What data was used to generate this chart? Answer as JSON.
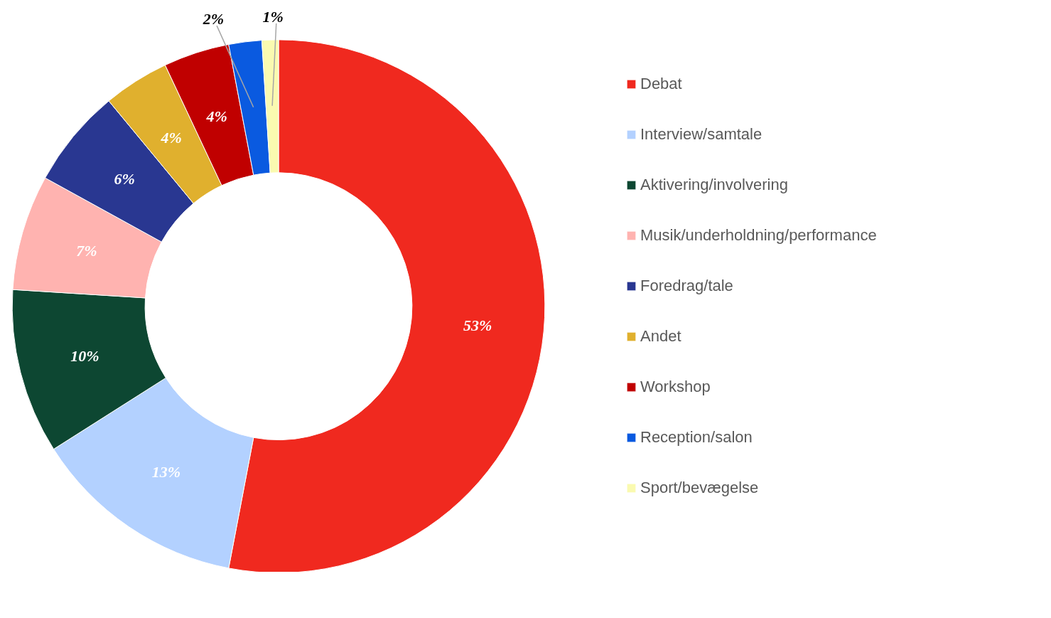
{
  "chart_data": {
    "type": "donut",
    "categories": [
      "Debat",
      "Interview/samtale",
      "Aktivering/involvering",
      "Musik/underholdning/performance",
      "Foredrag/tale",
      "Andet",
      "Workshop",
      "Reception/salon",
      "Sport/bevægelse"
    ],
    "values": [
      53,
      13,
      10,
      7,
      6,
      4,
      4,
      2,
      1
    ],
    "colors": [
      "#f0291f",
      "#b3d1ff",
      "#0d4732",
      "#ffb3b0",
      "#293791",
      "#e0b02e",
      "#c00000",
      "#0a5ae0",
      "#fafab0"
    ],
    "value_labels": [
      "53%",
      "13%",
      "10%",
      "7%",
      "6%",
      "4%",
      "4%",
      "2%",
      "1%"
    ],
    "legend": "right"
  }
}
